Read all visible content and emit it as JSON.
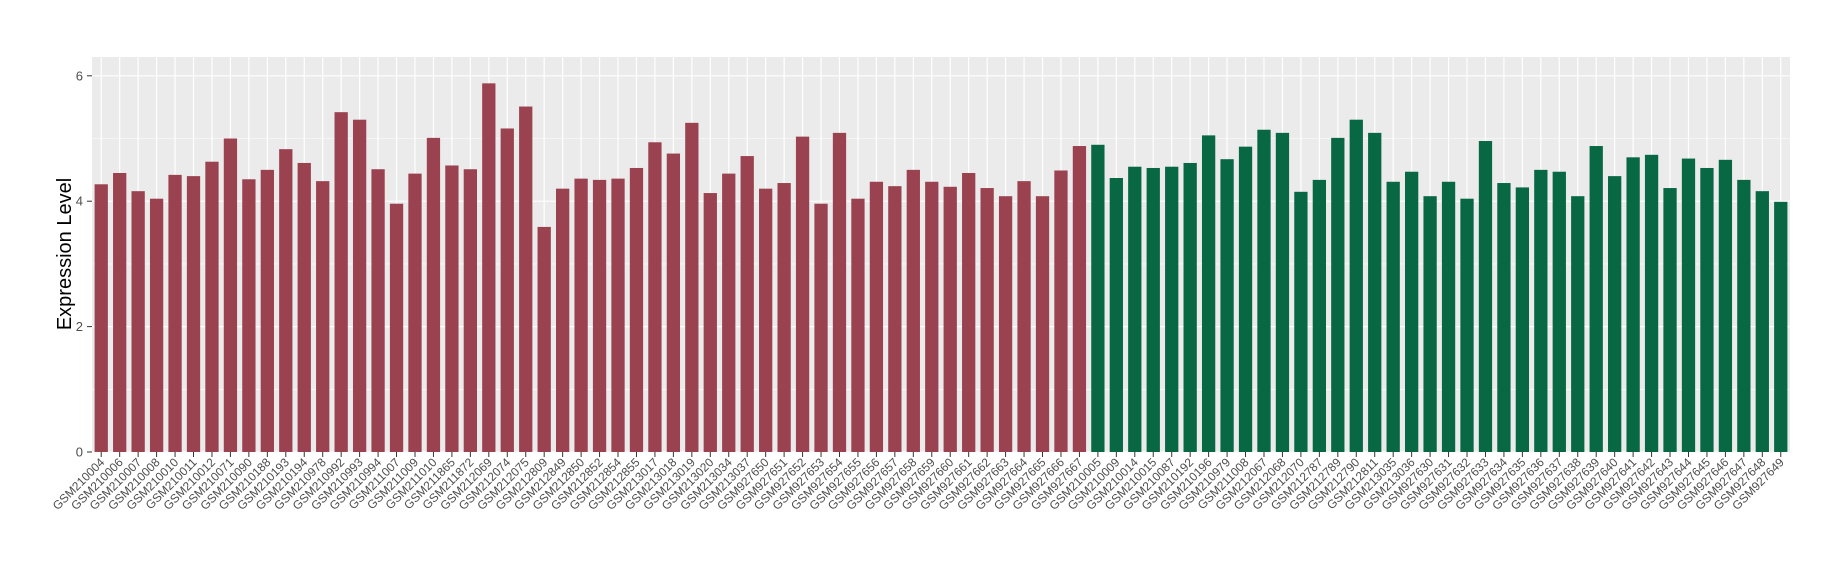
{
  "chart_data": {
    "type": "bar",
    "title": "",
    "xlabel": "",
    "ylabel": "Expression Level",
    "ylim": [
      0,
      6.3
    ],
    "yticks": [
      0,
      2,
      4,
      6
    ],
    "grid": true,
    "legend": "none",
    "colors": {
      "group1": "#9b4250",
      "group2": "#086843",
      "panel": "#ebebeb",
      "gridline": "#ffffff"
    },
    "categories": [
      "GSM210004",
      "GSM210006",
      "GSM210007",
      "GSM210008",
      "GSM210010",
      "GSM210011",
      "GSM210012",
      "GSM210071",
      "GSM210090",
      "GSM210188",
      "GSM210193",
      "GSM210194",
      "GSM210978",
      "GSM210992",
      "GSM210993",
      "GSM210994",
      "GSM211007",
      "GSM211009",
      "GSM211010",
      "GSM211865",
      "GSM211872",
      "GSM212069",
      "GSM212074",
      "GSM212075",
      "GSM212809",
      "GSM212849",
      "GSM212850",
      "GSM212852",
      "GSM212854",
      "GSM212855",
      "GSM213017",
      "GSM213018",
      "GSM213019",
      "GSM213020",
      "GSM213034",
      "GSM213037",
      "GSM927650",
      "GSM927651",
      "GSM927652",
      "GSM927653",
      "GSM927654",
      "GSM927655",
      "GSM927656",
      "GSM927657",
      "GSM927658",
      "GSM927659",
      "GSM927660",
      "GSM927661",
      "GSM927662",
      "GSM927663",
      "GSM927664",
      "GSM927665",
      "GSM927666",
      "GSM927667",
      "GSM210005",
      "GSM210009",
      "GSM210014",
      "GSM210015",
      "GSM210087",
      "GSM210192",
      "GSM210196",
      "GSM210979",
      "GSM211008",
      "GSM212067",
      "GSM212068",
      "GSM212070",
      "GSM212787",
      "GSM212789",
      "GSM212790",
      "GSM212811",
      "GSM213035",
      "GSM213036",
      "GSM927630",
      "GSM927631",
      "GSM927632",
      "GSM927633",
      "GSM927634",
      "GSM927635",
      "GSM927636",
      "GSM927637",
      "GSM927638",
      "GSM927639",
      "GSM927640",
      "GSM927641",
      "GSM927642",
      "GSM927643",
      "GSM927644",
      "GSM927645",
      "GSM927646",
      "GSM927647",
      "GSM927648",
      "GSM927649"
    ],
    "values": [
      4.27,
      4.45,
      4.16,
      4.04,
      4.42,
      4.4,
      4.63,
      5.0,
      4.35,
      4.5,
      4.83,
      4.61,
      4.32,
      5.42,
      5.3,
      4.51,
      3.96,
      4.44,
      5.01,
      4.57,
      4.51,
      5.88,
      5.16,
      5.51,
      3.59,
      4.2,
      4.36,
      4.34,
      4.36,
      4.53,
      4.94,
      4.76,
      5.25,
      4.13,
      4.44,
      4.72,
      4.2,
      4.29,
      5.03,
      3.96,
      5.09,
      4.04,
      4.31,
      4.24,
      4.5,
      4.31,
      4.23,
      4.45,
      4.21,
      4.08,
      4.32,
      4.08,
      4.49,
      4.88,
      4.9,
      4.37,
      4.55,
      4.53,
      4.55,
      4.61,
      5.05,
      4.67,
      4.87,
      5.14,
      5.09,
      4.15,
      4.34,
      5.01,
      5.3,
      5.09,
      4.31,
      4.47,
      4.08,
      4.31,
      4.04,
      4.96,
      4.29,
      4.22,
      4.5,
      4.47,
      4.08,
      4.88,
      4.4,
      4.7,
      4.74,
      4.21,
      4.68,
      4.53,
      4.66,
      4.34,
      4.16,
      3.99
    ],
    "group1_count": 54
  }
}
